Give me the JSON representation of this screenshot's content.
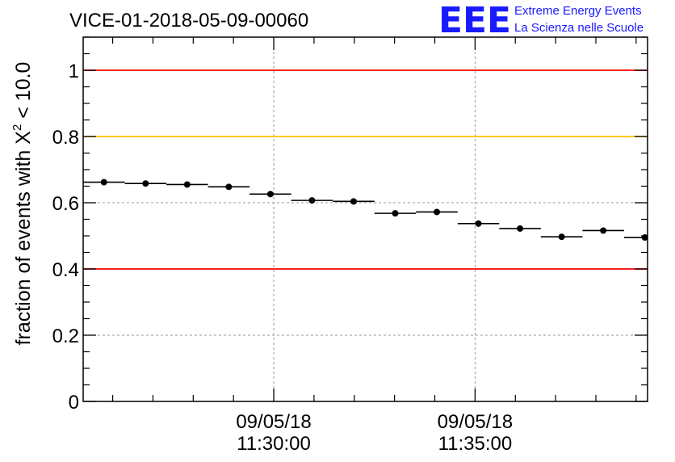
{
  "chart_data": {
    "type": "scatter",
    "title": "VICE-01-2018-05-09-00060",
    "ylabel": "fraction of events with X² < 10.0",
    "ylabel_parts": {
      "pre": "fraction of events with X",
      "sup": "2",
      "post": " < 10.0"
    },
    "xlabel": "",
    "ylim": [
      0,
      1.1
    ],
    "x_unit": "time",
    "xlim": [
      "2018-05-09 11:25:16",
      "2018-05-09 11:39:17"
    ],
    "x_ticks": [
      {
        "t": "2018-05-09 11:30:00",
        "label_date": "09/05/18",
        "label_time": "11:30:00"
      },
      {
        "t": "2018-05-09 11:35:00",
        "label_date": "09/05/18",
        "label_time": "11:35:00"
      }
    ],
    "y_ticks": [
      {
        "v": 0,
        "label": "0"
      },
      {
        "v": 0.2,
        "label": "0.2"
      },
      {
        "v": 0.4,
        "label": "0.4"
      },
      {
        "v": 0.6,
        "label": "0.6"
      },
      {
        "v": 0.8,
        "label": "0.8"
      },
      {
        "v": 1,
        "label": "1"
      }
    ],
    "grid": true,
    "reference_lines": [
      {
        "y": 1.0,
        "color": "#ff0000"
      },
      {
        "y": 0.8,
        "color": "#ffc000"
      },
      {
        "y": 0.4,
        "color": "#ff0000"
      }
    ],
    "series": [
      {
        "bin_width_s": 62,
        "x": [
          "11:25:47",
          "11:26:49",
          "11:27:51",
          "11:28:53",
          "11:29:55",
          "11:30:57",
          "11:31:59",
          "11:33:01",
          "11:34:03",
          "11:35:05",
          "11:36:07",
          "11:37:09",
          "11:38:11",
          "11:39:13"
        ],
        "values": [
          0.662,
          0.658,
          0.655,
          0.648,
          0.626,
          0.607,
          0.604,
          0.568,
          0.572,
          0.537,
          0.522,
          0.497,
          0.516,
          0.495
        ]
      }
    ],
    "colors": {
      "points": "#000000",
      "grid": "#999999"
    }
  },
  "logo": {
    "mark": "EEE",
    "line1": "Extreme Energy Events",
    "line2": "La Scienza nelle Scuole",
    "color": "#1a1aff"
  }
}
